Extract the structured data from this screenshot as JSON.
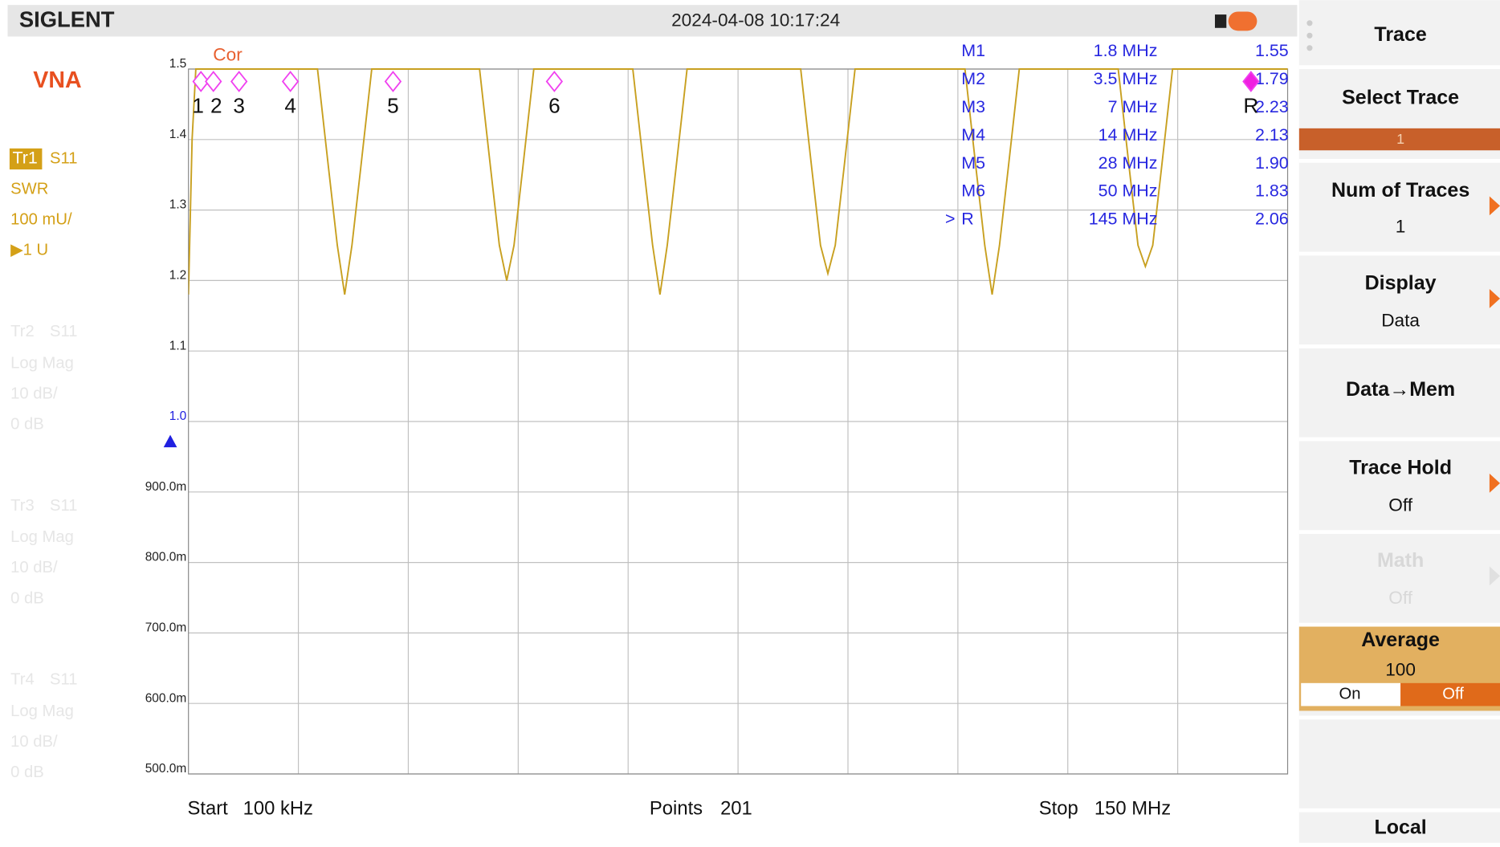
{
  "header": {
    "brand": "SIGLENT",
    "datetime": "2024-04-08 10:17:24"
  },
  "mode": "VNA",
  "traces": [
    {
      "id": "Tr1",
      "param": "S11",
      "format": "SWR",
      "scale": "100 mU/",
      "ref": "▶1 U"
    },
    {
      "id": "Tr2",
      "param": "S11",
      "format": "Log Mag",
      "scale": "10 dB/",
      "ref": "0 dB"
    },
    {
      "id": "Tr3",
      "param": "S11",
      "format": "Log Mag",
      "scale": "10 dB/",
      "ref": "0 dB"
    },
    {
      "id": "Tr4",
      "param": "S11",
      "format": "Log Mag",
      "scale": "10 dB/",
      "ref": "0 dB"
    }
  ],
  "chart_data": {
    "type": "line",
    "annotation": "Cor",
    "color": "#c8a020",
    "x": [
      0.1,
      0.6,
      1.1,
      17.7,
      19.2,
      20.4,
      21.4,
      22.4,
      23.6,
      25.1,
      39.8,
      41.3,
      42.5,
      43.5,
      44.5,
      45.7,
      47.2,
      60.7,
      62.2,
      63.4,
      64.4,
      65.4,
      66.6,
      68.1,
      83.6,
      85.1,
      86.3,
      87.3,
      88.3,
      89.5,
      91.0,
      106.0,
      107.5,
      108.7,
      109.7,
      110.7,
      111.9,
      113.4,
      126.9,
      128.4,
      129.6,
      130.6,
      131.6,
      132.8,
      134.3,
      150
    ],
    "values": [
      1.18,
      1.4,
      1.5,
      1.5,
      1.36,
      1.25,
      1.18,
      1.25,
      1.36,
      1.5,
      1.5,
      1.36,
      1.25,
      1.2,
      1.25,
      1.36,
      1.5,
      1.5,
      1.36,
      1.25,
      1.18,
      1.25,
      1.36,
      1.5,
      1.5,
      1.36,
      1.25,
      1.21,
      1.25,
      1.36,
      1.5,
      1.5,
      1.36,
      1.25,
      1.18,
      1.25,
      1.36,
      1.5,
      1.5,
      1.36,
      1.25,
      1.22,
      1.25,
      1.36,
      1.5,
      1.5
    ],
    "xlim": [
      0.1,
      150
    ],
    "xdivisions": 10,
    "ylim": [
      0.5,
      1.5
    ],
    "yticks": [
      1.5,
      1.4,
      1.3,
      1.2,
      1.1,
      {
        "value": 1,
        "label": "1.0"
      },
      {
        "value": 0.9,
        "label": "900.0m"
      },
      {
        "value": 0.8,
        "label": "800.0m"
      },
      {
        "value": 0.7,
        "label": "700.0m"
      },
      {
        "value": 0.6,
        "label": "600.0m"
      },
      {
        "value": 0.5,
        "label": "500.0m"
      }
    ],
    "reference_level": 1,
    "grid": true,
    "markers": [
      {
        "name": "M1",
        "label": "1",
        "x": 1.8,
        "freq": "1.8 MHz",
        "value": "1.55"
      },
      {
        "name": "M2",
        "label": "2",
        "x": 3.5,
        "freq": "3.5 MHz",
        "value": "1.79"
      },
      {
        "name": "M3",
        "label": "3",
        "x": 7,
        "freq": "7 MHz",
        "value": "2.23"
      },
      {
        "name": "M4",
        "label": "4",
        "x": 14,
        "freq": "14 MHz",
        "value": "2.13"
      },
      {
        "name": "M5",
        "label": "5",
        "x": 28,
        "freq": "28 MHz",
        "value": "1.90"
      },
      {
        "name": "M6",
        "label": "6",
        "x": 50,
        "freq": "50 MHz",
        "value": "1.83"
      },
      {
        "name": "R",
        "label": "R",
        "x": 145,
        "freq": "145 MHz",
        "value": "2.06",
        "pointer": ">"
      }
    ]
  },
  "footer": {
    "start": "Start",
    "start_value": "100 kHz",
    "points": "Points",
    "points_value": "201",
    "stop": "Stop",
    "stop_value": "150 MHz"
  },
  "softkeys": {
    "title": "Trace",
    "select_trace": "Select Trace",
    "select_trace_value": "1",
    "num_traces": "Num of Traces",
    "num_traces_value": "1",
    "display": "Display",
    "display_value": "Data",
    "data_mem": "Data→Mem",
    "trace_hold": "Trace Hold",
    "trace_hold_value": "Off",
    "math": "Math",
    "math_value": "Off",
    "average": "Average",
    "average_value": "100",
    "on": "On",
    "off": "Off",
    "local": "Local"
  }
}
